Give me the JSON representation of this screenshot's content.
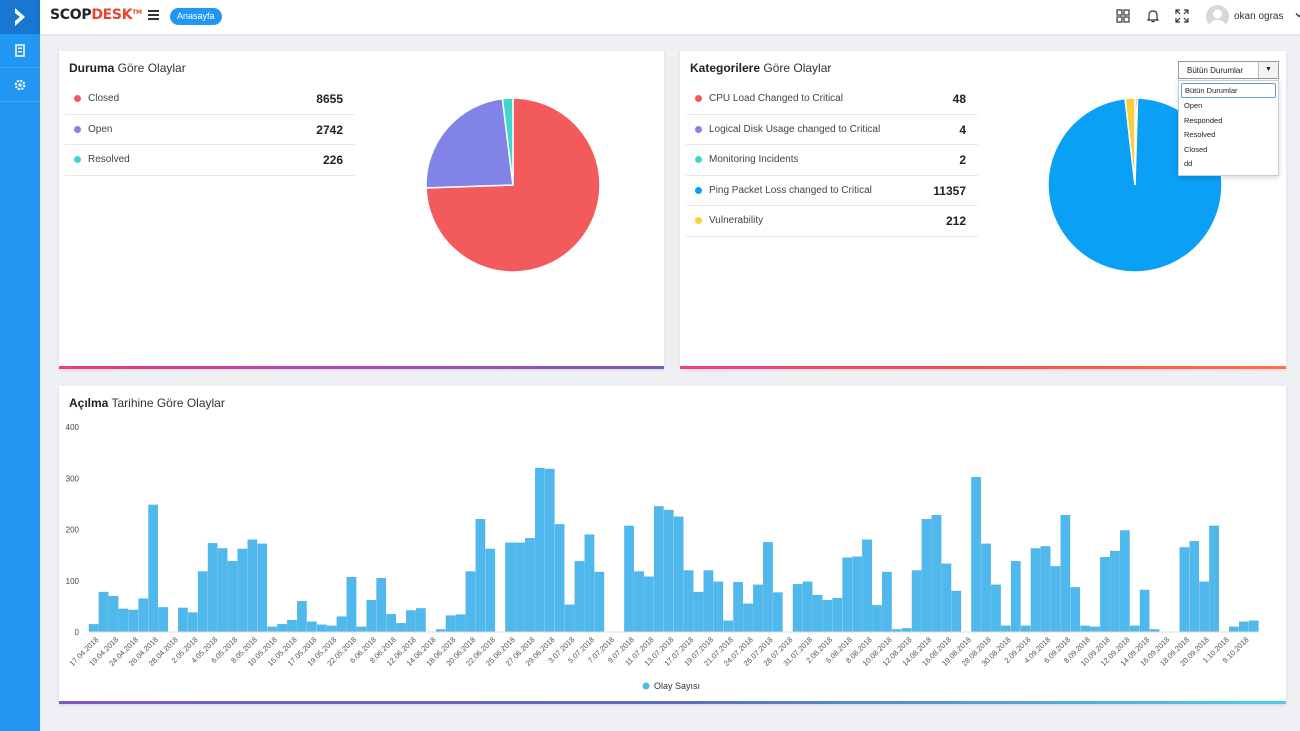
{
  "header": {
    "brand_part1": "SCOP",
    "brand_part2": "DESK",
    "brand_tm": "TM",
    "home_label": "Anasayfa",
    "user_name": "okan ogras",
    "icons": [
      "grid-icon",
      "bell-icon",
      "fullscreen-icon"
    ]
  },
  "sidebar": {
    "icons": [
      "chevron-right-icon",
      "building-icon",
      "gear-icon"
    ]
  },
  "colors": {
    "sidebar": "#2196f3",
    "closed": "#f35a5b",
    "open": "#8283e6",
    "resolved": "#3fd6ce",
    "cpu": "#f35a5b",
    "disk": "#8283e6",
    "monitoring": "#3fd6ce",
    "ping": "#0aa0f6",
    "vulnerability": "#f7d13a",
    "bar": "#4fb8ed"
  },
  "status_card": {
    "title_bold": "Duruma",
    "title_rest": " Göre Olaylar",
    "items": [
      {
        "label": "Closed",
        "value": "8655",
        "color": "#f35a5b"
      },
      {
        "label": "Open",
        "value": "2742",
        "color": "#8283e6"
      },
      {
        "label": "Resolved",
        "value": "226",
        "color": "#3fd6ce"
      }
    ]
  },
  "category_card": {
    "title_bold": "Kategorilere",
    "title_rest": " Göre Olaylar",
    "items": [
      {
        "label": "CPU Load Changed to Critical",
        "value": "48",
        "color": "#f35a5b"
      },
      {
        "label": "Logical Disk Usage changed to Critical",
        "value": "4",
        "color": "#8283e6"
      },
      {
        "label": "Monitoring Incidents",
        "value": "2",
        "color": "#3fd6ce"
      },
      {
        "label": "Ping Packet Loss changed to Critical",
        "value": "11357",
        "color": "#0aa0f6"
      },
      {
        "label": "Vulnerability",
        "value": "212",
        "color": "#f7d13a"
      }
    ],
    "filter": {
      "selected": "Bütün Durumlar",
      "options": [
        "Bütün Durumlar",
        "Open",
        "Responded",
        "Resolved",
        "Closed",
        "dd"
      ]
    }
  },
  "date_card": {
    "title_bold": "Açılma",
    "title_rest": " Tarihine Göre Olaylar"
  },
  "chart_data": {
    "type": "bar",
    "title": "Açılma Tarihine Göre Olaylar",
    "ylim": [
      0,
      400
    ],
    "yticks": [
      0,
      100,
      200,
      300,
      400
    ],
    "legend": {
      "position": "bottom",
      "label": "Olay Sayısı"
    },
    "x_tick_labels": [
      "17.04.2018",
      "19.04.2018",
      "24.04.2018",
      "26.04.2018",
      "28.04.2018",
      "2.05.2018",
      "4.05.2018",
      "6.05.2018",
      "8.05.2018",
      "10.05.2018",
      "15.05.2018",
      "17.05.2018",
      "19.05.2018",
      "22.05.2018",
      "6.06.2018",
      "8.06.2018",
      "12.06.2018",
      "14.06.2018",
      "18.06.2018",
      "20.06.2018",
      "22.06.2018",
      "25.06.2018",
      "27.06.2018",
      "29.06.2018",
      "3.07.2018",
      "5.07.2018",
      "7.07.2018",
      "9.07.2018",
      "11.07.2018",
      "13.07.2018",
      "17.07.2018",
      "19.07.2018",
      "21.07.2018",
      "24.07.2018",
      "26.07.2018",
      "28.07.2018",
      "31.07.2018",
      "2.08.2018",
      "6.08.2018",
      "8.08.2018",
      "10.08.2018",
      "12.08.2018",
      "14.08.2018",
      "16.08.2018",
      "19.08.2018",
      "28.08.2018",
      "30.08.2018",
      "2.09.2018",
      "4.09.2018",
      "6.09.2018",
      "8.09.2018",
      "10.09.2018",
      "12.09.2018",
      "14.09.2018",
      "16.09.2018",
      "18.09.2018",
      "20.09.2018",
      "1.10.2018",
      "9.10.2018"
    ],
    "series": [
      {
        "name": "Olay Sayısı",
        "values": [
          15,
          78,
          70,
          45,
          43,
          65,
          248,
          48,
          0,
          47,
          38,
          118,
          173,
          163,
          138,
          162,
          180,
          172,
          10,
          15,
          23,
          60,
          20,
          14,
          12,
          30,
          107,
          10,
          62,
          105,
          35,
          17,
          42,
          46,
          0,
          5,
          32,
          34,
          118,
          220,
          162,
          0,
          174,
          174,
          183,
          320,
          318,
          210,
          53,
          138,
          190,
          117,
          0,
          0,
          207,
          118,
          108,
          245,
          238,
          225,
          120,
          78,
          120,
          98,
          22,
          97,
          55,
          92,
          175,
          77,
          0,
          93,
          98,
          72,
          62,
          66,
          145,
          147,
          180,
          52,
          117,
          5,
          7,
          120,
          220,
          228,
          133,
          80,
          0,
          302,
          172,
          92,
          12,
          138,
          12,
          163,
          167,
          128,
          228,
          87,
          12,
          10,
          146,
          158,
          198,
          12,
          82,
          5,
          0,
          0,
          165,
          177,
          98,
          207,
          0,
          10,
          20,
          22
        ]
      }
    ]
  }
}
